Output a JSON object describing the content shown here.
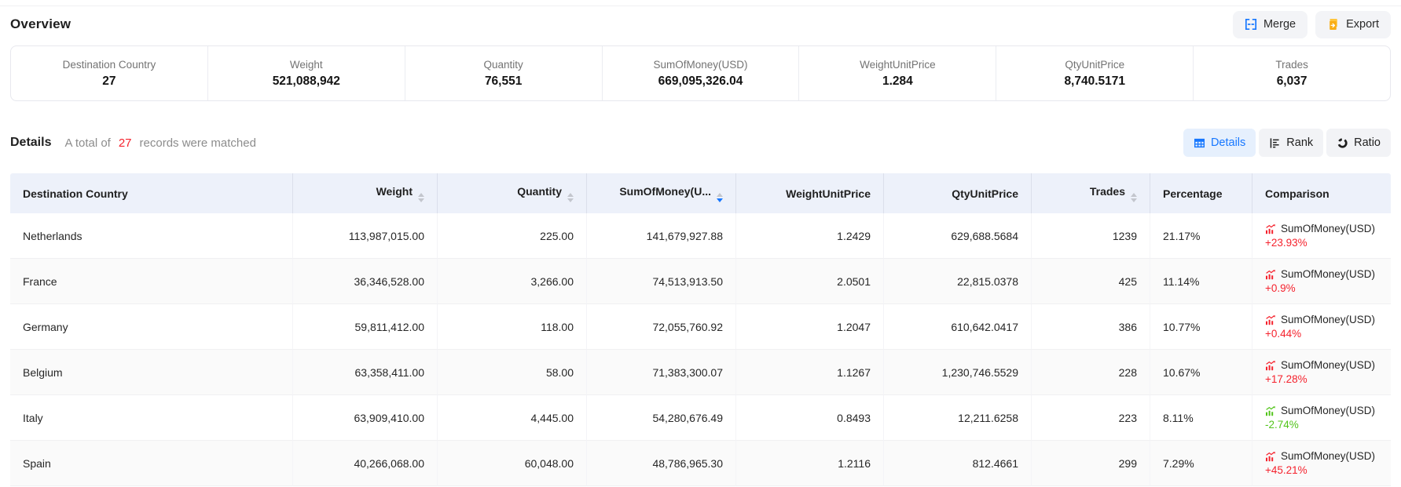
{
  "overview": {
    "title": "Overview",
    "stats": [
      {
        "label": "Destination Country",
        "value": "27"
      },
      {
        "label": "Weight",
        "value": "521,088,942"
      },
      {
        "label": "Quantity",
        "value": "76,551"
      },
      {
        "label": "SumOfMoney(USD)",
        "value": "669,095,326.04"
      },
      {
        "label": "WeightUnitPrice",
        "value": "1.284"
      },
      {
        "label": "QtyUnitPrice",
        "value": "8,740.5171"
      },
      {
        "label": "Trades",
        "value": "6,037"
      }
    ]
  },
  "toolbar": {
    "merge": "Merge",
    "export": "Export"
  },
  "details": {
    "title": "Details",
    "total_prefix": "A total of",
    "total_count": "27",
    "total_suffix": "records were matched",
    "views": [
      {
        "label": "Details",
        "icon": "table-grid-icon",
        "active": true
      },
      {
        "label": "Rank",
        "icon": "rank-bars-icon",
        "active": false
      },
      {
        "label": "Ratio",
        "icon": "ratio-donut-icon",
        "active": false
      }
    ]
  },
  "table": {
    "columns": [
      {
        "label": "Destination Country",
        "align": "left",
        "sortable": false,
        "sort": "none"
      },
      {
        "label": "Weight",
        "align": "right",
        "sortable": true,
        "sort": "none"
      },
      {
        "label": "Quantity",
        "align": "right",
        "sortable": true,
        "sort": "none"
      },
      {
        "label": "SumOfMoney(U...",
        "align": "right",
        "sortable": true,
        "sort": "desc"
      },
      {
        "label": "WeightUnitPrice",
        "align": "right",
        "sortable": false,
        "sort": "none"
      },
      {
        "label": "QtyUnitPrice",
        "align": "right",
        "sortable": false,
        "sort": "none"
      },
      {
        "label": "Trades",
        "align": "right",
        "sortable": true,
        "sort": "none"
      },
      {
        "label": "Percentage",
        "align": "left",
        "sortable": false,
        "sort": "none"
      },
      {
        "label": "Comparison",
        "align": "left",
        "sortable": false,
        "sort": "none"
      }
    ],
    "rows": [
      {
        "destination_country": "Netherlands",
        "weight": "113,987,015.00",
        "quantity": "225.00",
        "sum_of_money": "141,679,927.88",
        "weight_unit_price": "1.2429",
        "qty_unit_price": "629,688.5684",
        "trades": "1239",
        "percentage": "21.17%",
        "comparison": {
          "metric": "SumOfMoney(USD)",
          "change": "+23.93%",
          "direction": "up"
        }
      },
      {
        "destination_country": "France",
        "weight": "36,346,528.00",
        "quantity": "3,266.00",
        "sum_of_money": "74,513,913.50",
        "weight_unit_price": "2.0501",
        "qty_unit_price": "22,815.0378",
        "trades": "425",
        "percentage": "11.14%",
        "comparison": {
          "metric": "SumOfMoney(USD)",
          "change": "+0.9%",
          "direction": "up"
        }
      },
      {
        "destination_country": "Germany",
        "weight": "59,811,412.00",
        "quantity": "118.00",
        "sum_of_money": "72,055,760.92",
        "weight_unit_price": "1.2047",
        "qty_unit_price": "610,642.0417",
        "trades": "386",
        "percentage": "10.77%",
        "comparison": {
          "metric": "SumOfMoney(USD)",
          "change": "+0.44%",
          "direction": "up"
        }
      },
      {
        "destination_country": "Belgium",
        "weight": "63,358,411.00",
        "quantity": "58.00",
        "sum_of_money": "71,383,300.07",
        "weight_unit_price": "1.1267",
        "qty_unit_price": "1,230,746.5529",
        "trades": "228",
        "percentage": "10.67%",
        "comparison": {
          "metric": "SumOfMoney(USD)",
          "change": "+17.28%",
          "direction": "up"
        }
      },
      {
        "destination_country": "Italy",
        "weight": "63,909,410.00",
        "quantity": "4,445.00",
        "sum_of_money": "54,280,676.49",
        "weight_unit_price": "0.8493",
        "qty_unit_price": "12,211.6258",
        "trades": "223",
        "percentage": "8.11%",
        "comparison": {
          "metric": "SumOfMoney(USD)",
          "change": "-2.74%",
          "direction": "down"
        }
      },
      {
        "destination_country": "Spain",
        "weight": "40,266,068.00",
        "quantity": "60,048.00",
        "sum_of_money": "48,786,965.30",
        "weight_unit_price": "1.2116",
        "qty_unit_price": "812.4661",
        "trades": "299",
        "percentage": "7.29%",
        "comparison": {
          "metric": "SumOfMoney(USD)",
          "change": "+45.21%",
          "direction": "up"
        }
      }
    ]
  },
  "colors": {
    "accent_blue": "#1677ff",
    "rise_red": "#f5222d",
    "fall_green": "#52c41a",
    "export_orange": "#faad14",
    "header_bg": "#edf1fa"
  },
  "icons": {
    "merge": "merge-cells-icon",
    "export": "export-file-icon",
    "details_view": "table-grid-icon",
    "rank_view": "rank-bars-icon",
    "ratio_view": "ratio-donut-icon",
    "comparison_rise": "bar-chart-rise-icon",
    "comparison_fall": "bar-chart-fall-icon",
    "sort": "sort-carets-icon"
  }
}
